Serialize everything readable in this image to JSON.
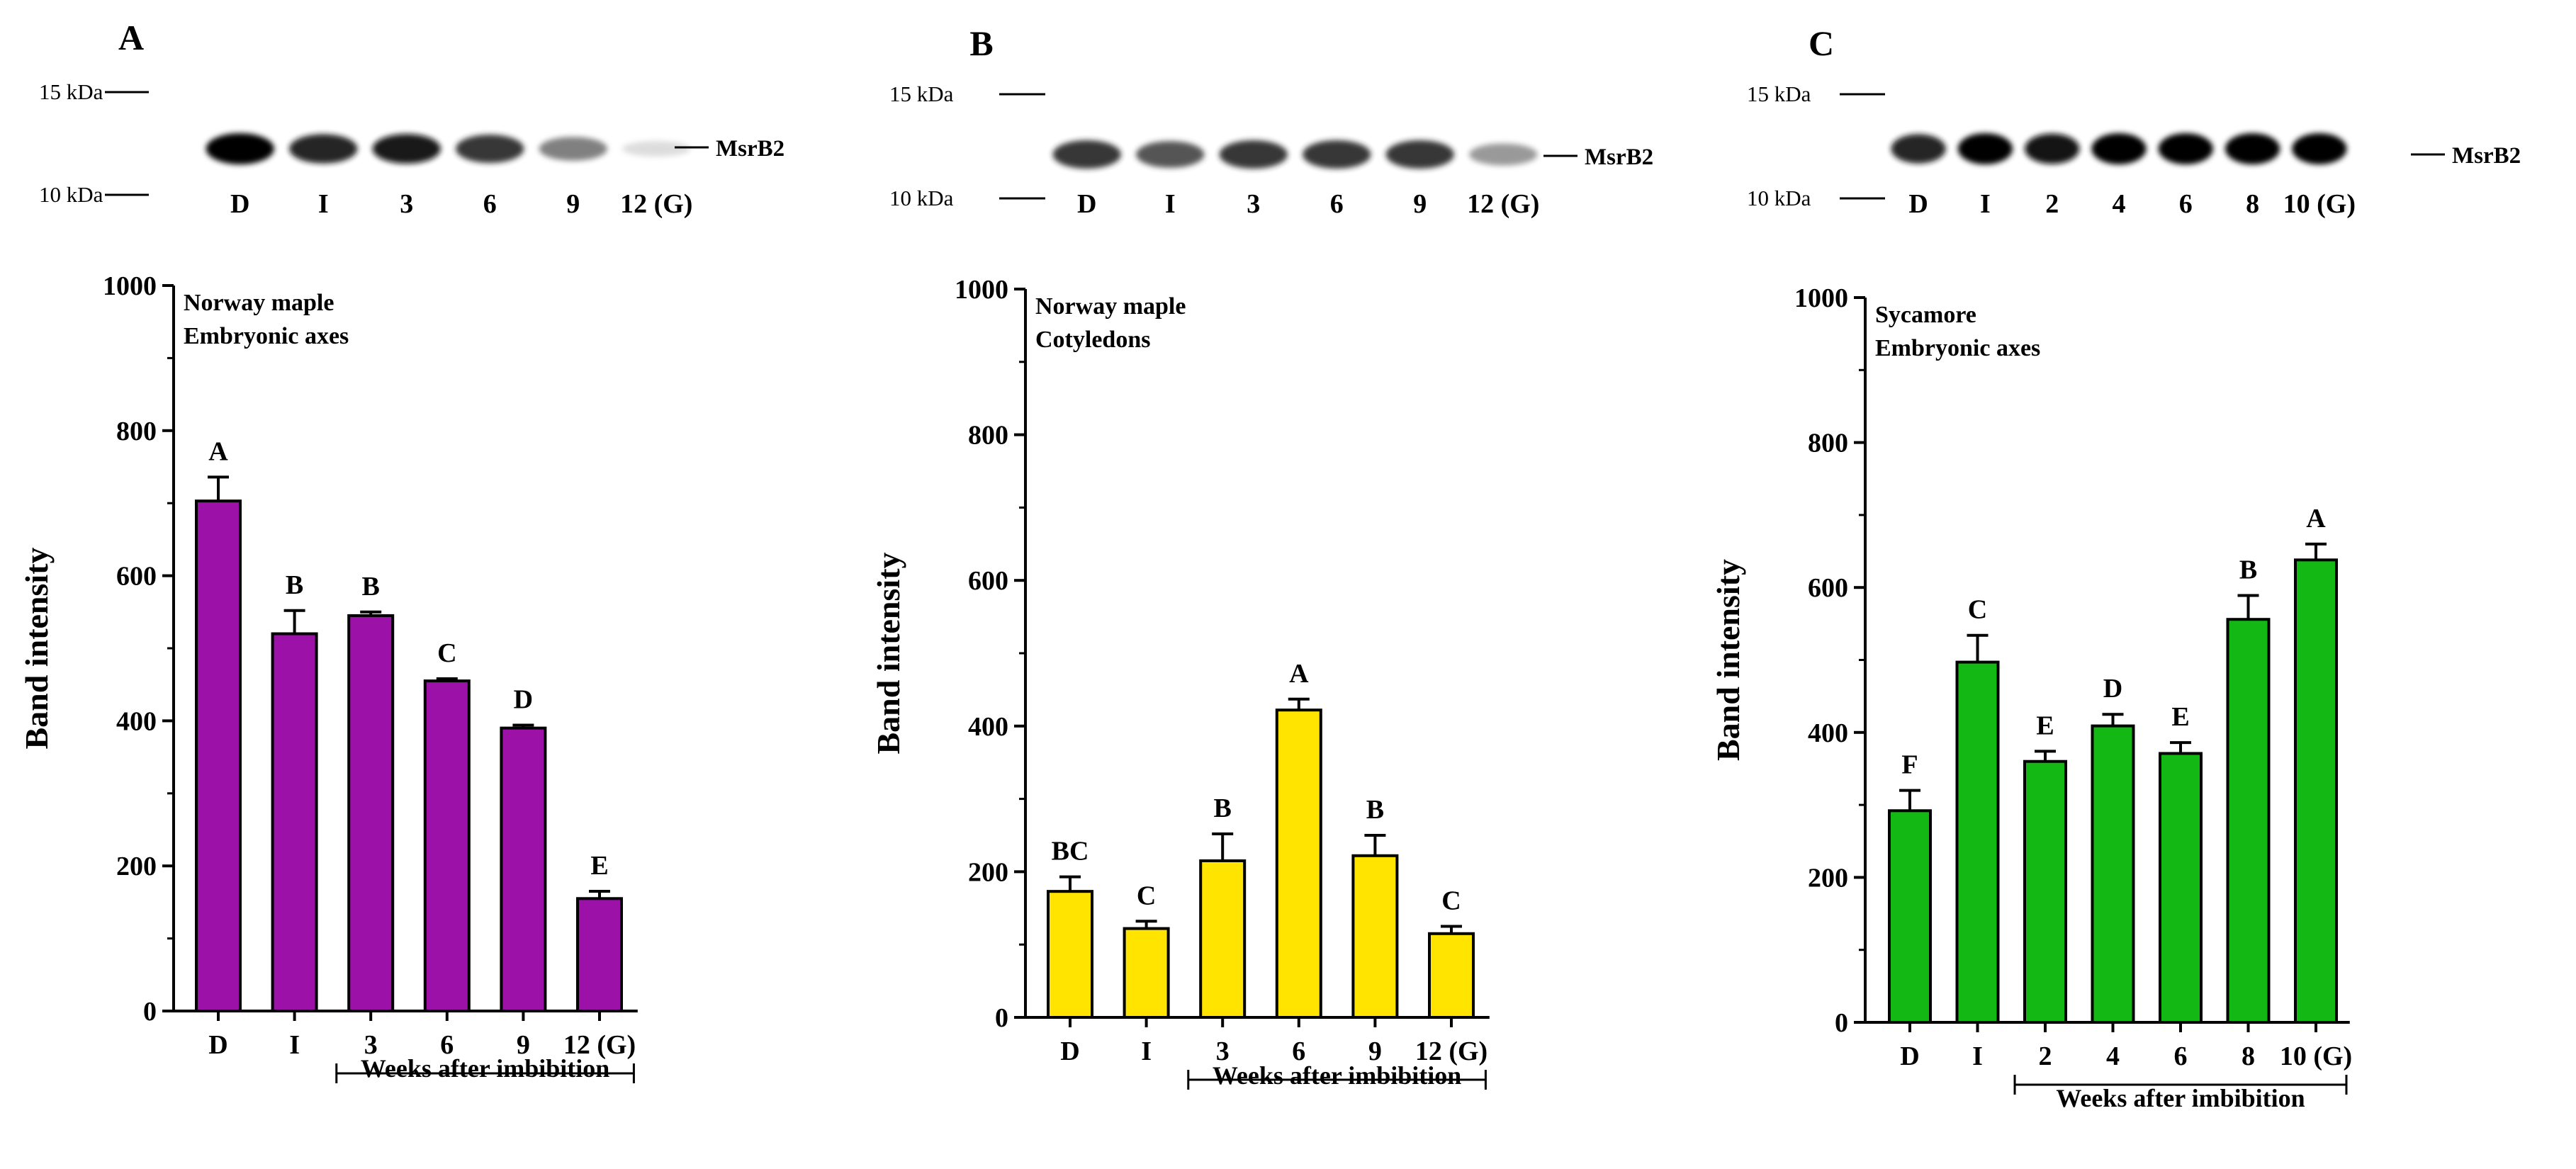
{
  "chart_data": [
    {
      "type": "bar",
      "panel": "A",
      "title": "Norway maple",
      "subtitle": "Embryonic axes",
      "ylabel": "Band intensity",
      "xlabel": "Weeks after imbibition",
      "ylim": [
        0,
        1000
      ],
      "yticks": [
        0,
        200,
        400,
        600,
        800,
        1000
      ],
      "categories": [
        "D",
        "I",
        "3",
        "6",
        "9",
        "12 (G)"
      ],
      "values": [
        703,
        520,
        545,
        455,
        390,
        155
      ],
      "errors": [
        33,
        32,
        5,
        3,
        4,
        10
      ],
      "significance": [
        "A",
        "B",
        "B",
        "C",
        "D",
        "E"
      ],
      "color": "#9c12a8",
      "blot": {
        "marker_high": "15 kDa",
        "marker_low": "10 kDa",
        "band_label": "MsrB2",
        "lanes": [
          "D",
          "I",
          "3",
          "6",
          "9",
          "12 (G)"
        ],
        "band_strength": [
          1.0,
          0.9,
          0.92,
          0.85,
          0.6,
          0.15
        ]
      }
    },
    {
      "type": "bar",
      "panel": "B",
      "title": "Norway maple",
      "subtitle": "Cotyledons",
      "ylabel": "Band intensity",
      "xlabel": "Weeks after imbibition",
      "ylim": [
        0,
        1000
      ],
      "yticks": [
        0,
        200,
        400,
        600,
        800,
        1000
      ],
      "categories": [
        "D",
        "I",
        "3",
        "6",
        "9",
        "12 (G)"
      ],
      "values": [
        173,
        122,
        215,
        422,
        222,
        115
      ],
      "errors": [
        20,
        10,
        37,
        15,
        28,
        10
      ],
      "significance": [
        "BC",
        "C",
        "B",
        "A",
        "B",
        "C"
      ],
      "color": "#ffe400",
      "blot": {
        "marker_high": "15 kDa",
        "marker_low": "10 kDa",
        "band_label": "MsrB2",
        "lanes": [
          "D",
          "I",
          "3",
          "6",
          "9",
          "12 (G)"
        ],
        "band_strength": [
          0.85,
          0.75,
          0.85,
          0.85,
          0.85,
          0.5
        ]
      }
    },
    {
      "type": "bar",
      "panel": "C",
      "title": "Sycamore",
      "subtitle": "Embryonic axes",
      "ylabel": "Band intensity",
      "xlabel": "Weeks after imbibition",
      "ylim": [
        0,
        1000
      ],
      "yticks": [
        0,
        200,
        400,
        600,
        800,
        1000
      ],
      "categories": [
        "D",
        "I",
        "2",
        "4",
        "6",
        "8",
        "10 (G)"
      ],
      "values": [
        292,
        497,
        360,
        409,
        371,
        556,
        638
      ],
      "errors": [
        28,
        37,
        14,
        16,
        15,
        33,
        22
      ],
      "significance": [
        "F",
        "C",
        "E",
        "D",
        "E",
        "B",
        "A"
      ],
      "color": "#14b814",
      "blot": {
        "marker_high": "15 kDa",
        "marker_low": "10 kDa",
        "band_label": "MsrB2",
        "lanes": [
          "D",
          "I",
          "2",
          "4",
          "6",
          "8",
          "10 (G)"
        ],
        "band_strength": [
          0.9,
          1.0,
          0.95,
          1.0,
          1.0,
          1.0,
          1.0
        ]
      }
    }
  ]
}
